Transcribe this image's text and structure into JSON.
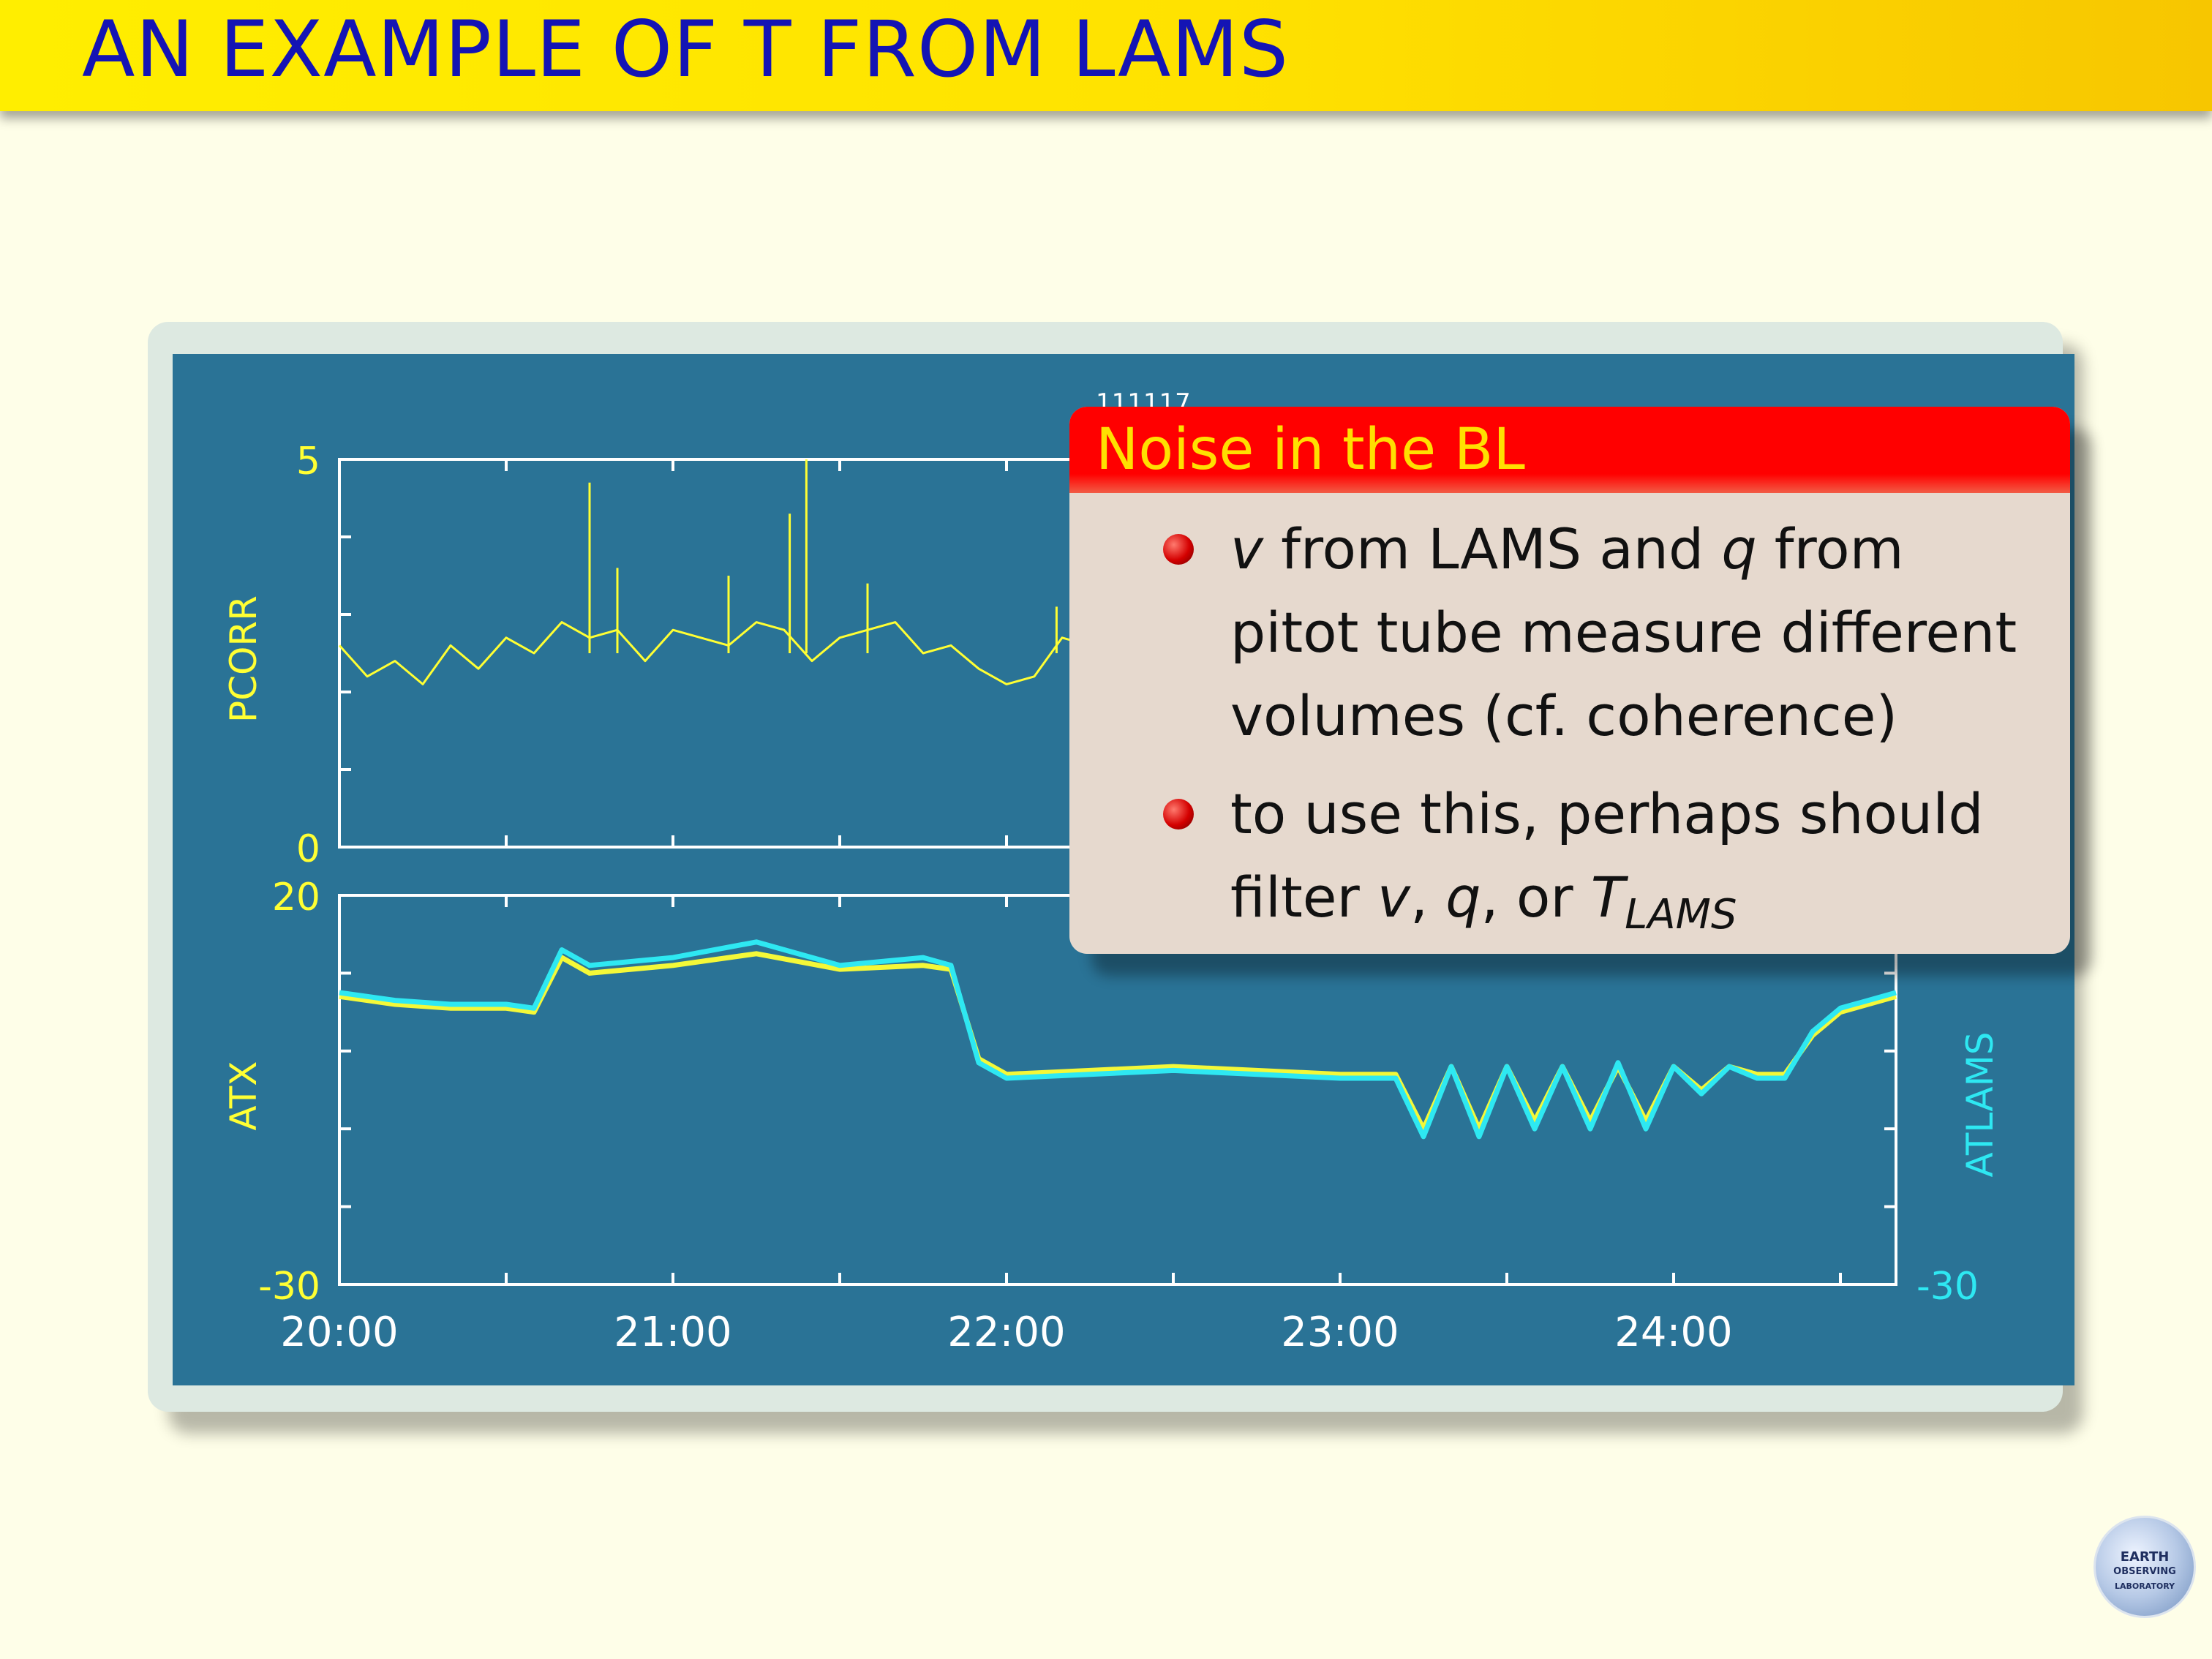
{
  "slide": {
    "title": "AN EXAMPLE OF T FROM LAMS"
  },
  "chart_data": {
    "type": "line",
    "header_label": "111117",
    "x_tick_labels": [
      "20:00",
      "21:00",
      "22:00",
      "23:00",
      "24:00"
    ],
    "xlim": [
      "20:00",
      "24:40"
    ],
    "panels": [
      {
        "ylabel": "PCORR",
        "ylim": [
          0,
          5
        ],
        "y_tick_labels": [
          "5",
          "0"
        ],
        "series": [
          {
            "name": "",
            "color": "#ffff33",
            "x": [
              "20:00",
              "20:05",
              "20:10",
              "20:15",
              "20:20",
              "20:25",
              "20:30",
              "20:35",
              "20:40",
              "20:45",
              "20:50",
              "20:55",
              "21:00",
              "21:05",
              "21:10",
              "21:15",
              "21:20",
              "21:25",
              "21:30",
              "21:35",
              "21:40",
              "21:45",
              "21:50",
              "21:55",
              "22:00",
              "22:05",
              "22:10",
              "22:15"
            ],
            "values": [
              2.6,
              2.2,
              2.4,
              2.1,
              2.6,
              2.3,
              2.7,
              2.5,
              2.9,
              2.7,
              2.8,
              2.4,
              2.8,
              2.7,
              2.6,
              2.9,
              2.8,
              2.4,
              2.7,
              2.8,
              2.9,
              2.5,
              2.6,
              2.3,
              2.1,
              2.2,
              2.7,
              2.6
            ],
            "spikes": [
              {
                "x": "20:45",
                "y": 4.7
              },
              {
                "x": "20:50",
                "y": 3.6
              },
              {
                "x": "21:10",
                "y": 3.5
              },
              {
                "x": "21:21",
                "y": 4.3
              },
              {
                "x": "21:24",
                "y": 5.0
              },
              {
                "x": "21:35",
                "y": 3.4
              },
              {
                "x": "22:09",
                "y": 3.1
              }
            ]
          }
        ]
      },
      {
        "ylabel": "ATX",
        "ylabel_right": "ATLAMS",
        "ylim": [
          -30,
          20
        ],
        "y_tick_labels": [
          "20",
          "-30"
        ],
        "y_tick_labels_right": [
          "-30"
        ],
        "series": [
          {
            "name": "ATX",
            "color": "#ffff33",
            "x": [
              "20:00",
              "20:10",
              "20:20",
              "20:30",
              "20:35",
              "20:40",
              "20:45",
              "21:00",
              "21:15",
              "21:30",
              "21:45",
              "21:50",
              "21:55",
              "22:00",
              "22:30",
              "23:00",
              "23:10",
              "23:15",
              "23:20",
              "23:25",
              "23:30",
              "23:35",
              "23:40",
              "23:45",
              "23:50",
              "23:55",
              "24:00",
              "24:05",
              "24:10",
              "24:15",
              "24:20",
              "24:25",
              "24:30",
              "24:40"
            ],
            "values": [
              7,
              6,
              5.5,
              5.5,
              5,
              12,
              10,
              11,
              12.5,
              10.5,
              11,
              10.5,
              -1,
              -3,
              -2,
              -3,
              -3,
              -10,
              -2,
              -10,
              -2,
              -9,
              -2,
              -9,
              -2,
              -9,
              -2,
              -5,
              -2,
              -3,
              -3,
              2,
              5,
              7
            ]
          },
          {
            "name": "ATLAMS",
            "color": "#2ee8f2",
            "x": [
              "20:00",
              "20:10",
              "20:20",
              "20:30",
              "20:35",
              "20:40",
              "20:45",
              "21:00",
              "21:15",
              "21:30",
              "21:45",
              "21:50",
              "21:55",
              "22:00",
              "22:30",
              "23:00",
              "23:10",
              "23:15",
              "23:20",
              "23:25",
              "23:30",
              "23:35",
              "23:40",
              "23:45",
              "23:50",
              "23:55",
              "24:00",
              "24:05",
              "24:10",
              "24:15",
              "24:20",
              "24:25",
              "24:30",
              "24:40"
            ],
            "values": [
              7.5,
              6.5,
              6,
              6,
              5.5,
              13,
              11,
              12,
              14,
              11,
              12,
              11,
              -1.5,
              -3.5,
              -2.5,
              -3.5,
              -3.5,
              -11,
              -2,
              -11,
              -2,
              -10,
              -2,
              -10,
              -1.5,
              -10,
              -2,
              -5.5,
              -2,
              -3.5,
              -3.5,
              2.5,
              5.5,
              7.5
            ]
          }
        ]
      }
    ]
  },
  "alert_block": {
    "header": "Noise in the BL",
    "bullet1": {
      "v": "v",
      "line1_rest": " from LAMS and ",
      "q": "q",
      "line1_end": " from",
      "line2": "pitot tube measure different",
      "line3": "volumes (cf. coherence)"
    },
    "bullet2": {
      "line1": "to use this, perhaps should",
      "line2_start": "filter ",
      "v": "v",
      "comma1": ", ",
      "q": "q",
      "or": ", or ",
      "T": "T",
      "sub": "LAMS"
    }
  },
  "logo": {
    "line1": "EARTH",
    "line2": "OBSERVING",
    "line3": "LABORATORY"
  }
}
